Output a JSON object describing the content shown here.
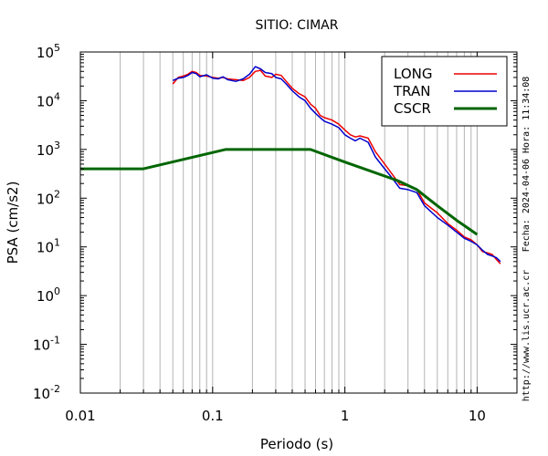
{
  "chart_data": {
    "type": "line",
    "title": "SITIO: CIMAR",
    "xlabel": "Periodo (s)",
    "ylabel": "PSA (cm/s2)",
    "xscale": "log",
    "yscale": "log",
    "xlim": [
      0.01,
      20
    ],
    "ylim": [
      0.01,
      100000
    ],
    "grid": "vertical-minor",
    "legend_position": "top-right",
    "x_ticks": [
      {
        "value": 0.01,
        "label": "0.01"
      },
      {
        "value": 0.1,
        "label": "0.1"
      },
      {
        "value": 1,
        "label": "1"
      },
      {
        "value": 10,
        "label": "10"
      }
    ],
    "y_ticks": [
      {
        "value": 100000,
        "base": "10",
        "exp": "5"
      },
      {
        "value": 10000,
        "base": "10",
        "exp": "4"
      },
      {
        "value": 1000,
        "base": "10",
        "exp": "3"
      },
      {
        "value": 100,
        "base": "10",
        "exp": "2"
      },
      {
        "value": 10,
        "base": "10",
        "exp": "1"
      },
      {
        "value": 1,
        "base": "10",
        "exp": "0"
      },
      {
        "value": 0.1,
        "base": "10",
        "exp": "-1"
      },
      {
        "value": 0.01,
        "base": "10",
        "exp": "-2"
      }
    ],
    "series": [
      {
        "name": "LONG",
        "color": "#ee0000",
        "width": 1.5,
        "points": [
          [
            0.05,
            22000
          ],
          [
            0.055,
            30000
          ],
          [
            0.06,
            32000
          ],
          [
            0.065,
            35000
          ],
          [
            0.07,
            40000
          ],
          [
            0.075,
            38000
          ],
          [
            0.08,
            33000
          ],
          [
            0.09,
            32000
          ],
          [
            0.1,
            30000
          ],
          [
            0.11,
            29000
          ],
          [
            0.12,
            30000
          ],
          [
            0.13,
            28000
          ],
          [
            0.15,
            27000
          ],
          [
            0.17,
            26000
          ],
          [
            0.19,
            30000
          ],
          [
            0.21,
            40000
          ],
          [
            0.23,
            42000
          ],
          [
            0.25,
            32000
          ],
          [
            0.28,
            30000
          ],
          [
            0.3,
            35000
          ],
          [
            0.33,
            33000
          ],
          [
            0.36,
            25000
          ],
          [
            0.4,
            18000
          ],
          [
            0.45,
            14000
          ],
          [
            0.5,
            12000
          ],
          [
            0.55,
            8500
          ],
          [
            0.6,
            7000
          ],
          [
            0.65,
            5000
          ],
          [
            0.7,
            4500
          ],
          [
            0.8,
            4000
          ],
          [
            0.9,
            3300
          ],
          [
            1.0,
            2500
          ],
          [
            1.1,
            2000
          ],
          [
            1.2,
            1800
          ],
          [
            1.3,
            1900
          ],
          [
            1.5,
            1700
          ],
          [
            1.7,
            900
          ],
          [
            2.0,
            500
          ],
          [
            2.3,
            300
          ],
          [
            2.6,
            190
          ],
          [
            3.0,
            180
          ],
          [
            3.5,
            150
          ],
          [
            4.0,
            80
          ],
          [
            5.0,
            50
          ],
          [
            6.0,
            30
          ],
          [
            7.0,
            22
          ],
          [
            8.0,
            16
          ],
          [
            9.0,
            14
          ],
          [
            10.0,
            11
          ],
          [
            11.0,
            8
          ],
          [
            12.0,
            7.5
          ],
          [
            13.0,
            7
          ],
          [
            14.0,
            5.5
          ],
          [
            15.0,
            4.5
          ]
        ]
      },
      {
        "name": "TRAN",
        "color": "#0000cc",
        "width": 1.5,
        "points": [
          [
            0.05,
            26000
          ],
          [
            0.055,
            29000
          ],
          [
            0.06,
            30000
          ],
          [
            0.065,
            33000
          ],
          [
            0.07,
            38000
          ],
          [
            0.075,
            36000
          ],
          [
            0.08,
            31000
          ],
          [
            0.09,
            34000
          ],
          [
            0.1,
            29000
          ],
          [
            0.11,
            28000
          ],
          [
            0.12,
            31000
          ],
          [
            0.13,
            27000
          ],
          [
            0.15,
            25000
          ],
          [
            0.17,
            28000
          ],
          [
            0.19,
            35000
          ],
          [
            0.21,
            50000
          ],
          [
            0.23,
            45000
          ],
          [
            0.25,
            38000
          ],
          [
            0.28,
            36000
          ],
          [
            0.3,
            30000
          ],
          [
            0.33,
            28000
          ],
          [
            0.36,
            22000
          ],
          [
            0.4,
            16000
          ],
          [
            0.45,
            12000
          ],
          [
            0.5,
            10000
          ],
          [
            0.55,
            7000
          ],
          [
            0.6,
            5500
          ],
          [
            0.65,
            4500
          ],
          [
            0.7,
            3800
          ],
          [
            0.8,
            3300
          ],
          [
            0.9,
            2800
          ],
          [
            1.0,
            2000
          ],
          [
            1.1,
            1700
          ],
          [
            1.2,
            1500
          ],
          [
            1.3,
            1700
          ],
          [
            1.5,
            1400
          ],
          [
            1.7,
            700
          ],
          [
            2.0,
            400
          ],
          [
            2.3,
            250
          ],
          [
            2.6,
            160
          ],
          [
            3.0,
            150
          ],
          [
            3.5,
            130
          ],
          [
            4.0,
            70
          ],
          [
            5.0,
            40
          ],
          [
            6.0,
            28
          ],
          [
            7.0,
            20
          ],
          [
            8.0,
            15
          ],
          [
            9.0,
            13
          ],
          [
            10.0,
            11
          ],
          [
            11.0,
            8.5
          ],
          [
            12.0,
            7
          ],
          [
            13.0,
            6.5
          ],
          [
            14.0,
            6
          ],
          [
            15.0,
            5
          ]
        ]
      },
      {
        "name": "CSCR",
        "color": "#006600",
        "width": 3,
        "points": [
          [
            0.01,
            400
          ],
          [
            0.03,
            400
          ],
          [
            0.125,
            1000
          ],
          [
            0.55,
            1000
          ],
          [
            1.0,
            550
          ],
          [
            2.5,
            230
          ],
          [
            3.5,
            150
          ],
          [
            5.0,
            70
          ],
          [
            7.0,
            35
          ],
          [
            10.0,
            18
          ]
        ]
      }
    ]
  },
  "side_text": {
    "date": "Fecha: 2024-04-06  Hora: 11:34:08",
    "url": "http://www.lis.ucr.ac.cr"
  }
}
